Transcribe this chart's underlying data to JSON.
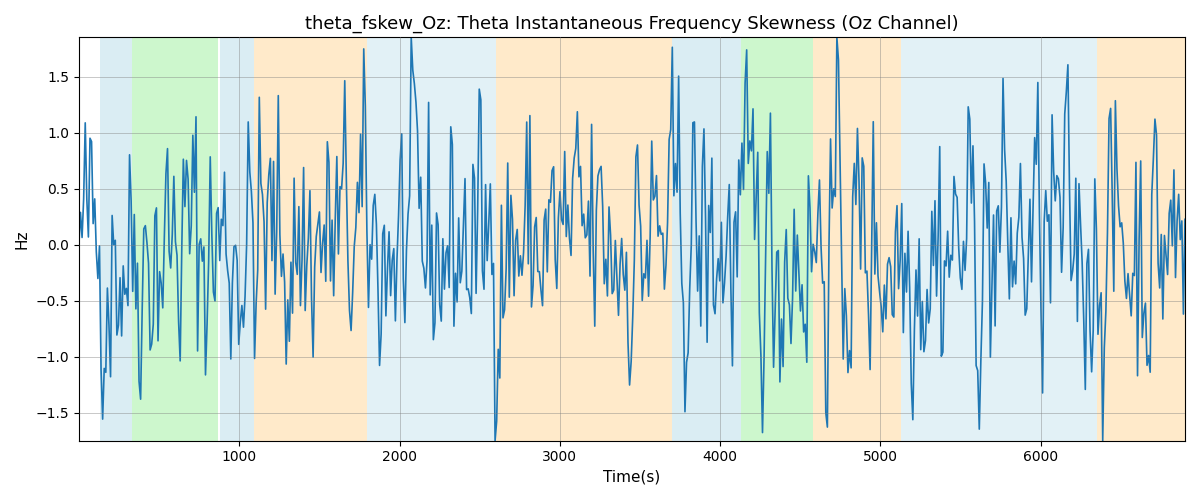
{
  "title": "theta_fskew_Oz: Theta Instantaneous Frequency Skewness (Oz Channel)",
  "xlabel": "Time(s)",
  "ylabel": "Hz",
  "xlim": [
    0,
    6900
  ],
  "ylim": [
    -1.75,
    1.85
  ],
  "yticks": [
    -1.5,
    -1.0,
    -0.5,
    0.0,
    0.5,
    1.0,
    1.5
  ],
  "xticks": [
    1000,
    2000,
    3000,
    4000,
    5000,
    6000
  ],
  "line_color": "#1f77b4",
  "line_width": 1.2,
  "bands": [
    {
      "xmin": 130,
      "xmax": 330,
      "color": "#add8e6",
      "alpha": 0.45
    },
    {
      "xmin": 330,
      "xmax": 870,
      "color": "#90ee90",
      "alpha": 0.45
    },
    {
      "xmin": 880,
      "xmax": 1090,
      "color": "#add8e6",
      "alpha": 0.45
    },
    {
      "xmin": 1090,
      "xmax": 1800,
      "color": "#ffd9a0",
      "alpha": 0.55
    },
    {
      "xmin": 1800,
      "xmax": 2600,
      "color": "#add8e6",
      "alpha": 0.35
    },
    {
      "xmin": 2600,
      "xmax": 3700,
      "color": "#ffd9a0",
      "alpha": 0.55
    },
    {
      "xmin": 3700,
      "xmax": 4050,
      "color": "#add8e6",
      "alpha": 0.45
    },
    {
      "xmin": 4050,
      "xmax": 4130,
      "color": "#add8e6",
      "alpha": 0.45
    },
    {
      "xmin": 4130,
      "xmax": 4580,
      "color": "#90ee90",
      "alpha": 0.45
    },
    {
      "xmin": 4580,
      "xmax": 5130,
      "color": "#ffd9a0",
      "alpha": 0.55
    },
    {
      "xmin": 5130,
      "xmax": 6350,
      "color": "#add8e6",
      "alpha": 0.35
    },
    {
      "xmin": 6350,
      "xmax": 6900,
      "color": "#ffd9a0",
      "alpha": 0.55
    }
  ],
  "seed": 42,
  "n_points": 700,
  "title_fontsize": 13
}
